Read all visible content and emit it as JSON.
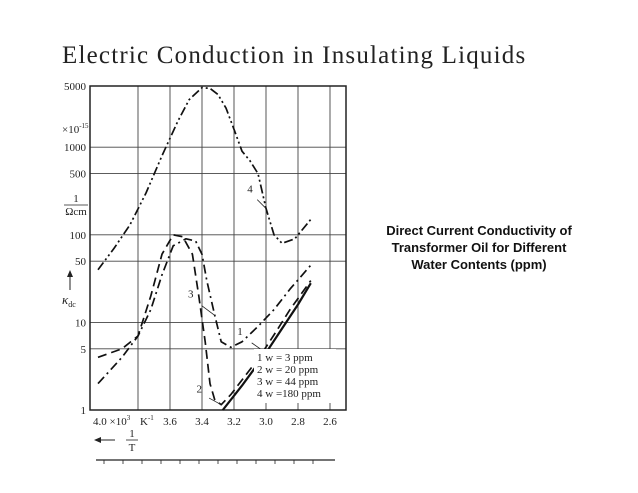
{
  "title": "Electric Conduction in Insulating Liquids",
  "caption": {
    "lines": [
      "Direct Current Conductivity of",
      "Transformer Oil for Different",
      "Water Contents (ppm)"
    ]
  },
  "chart_data": {
    "type": "line",
    "x_scale": "reciprocal",
    "y_scale": "log",
    "xlim": [
      4.1,
      2.5
    ],
    "ylim": [
      1,
      5000
    ],
    "grid": true,
    "ylabel": {
      "multiplier": "×10",
      "multiplier_exp": "-15",
      "unit_num": "1",
      "unit_den": "Ωcm",
      "symbol": "κ",
      "symbol_sub": "dc"
    },
    "xlabel": {
      "prefix": "4.0 ×10",
      "prefix_exp": "3",
      "unit": "K",
      "unit_exp": "-1",
      "frac_num": "1",
      "frac_den": "T"
    },
    "y_ticks": [
      {
        "value": 5000,
        "label": "5000"
      },
      {
        "value": 1000,
        "label": "1000"
      },
      {
        "value": 500,
        "label": "500"
      },
      {
        "value": 100,
        "label": "100"
      },
      {
        "value": 50,
        "label": "50"
      },
      {
        "value": 10,
        "label": "10"
      },
      {
        "value": 5,
        "label": "5"
      },
      {
        "value": 1,
        "label": "1"
      }
    ],
    "x_ticks": [
      {
        "value": 3.6,
        "label": "3.6"
      },
      {
        "value": 3.4,
        "label": "3.4"
      },
      {
        "value": 3.2,
        "label": "3.2"
      },
      {
        "value": 3.0,
        "label": "3.0"
      },
      {
        "value": 2.8,
        "label": "2.8"
      },
      {
        "value": 2.6,
        "label": "2.6"
      }
    ],
    "legend": {
      "placement": "bottom-right",
      "entries": [
        "1 w =   3 ppm",
        "2 w =  20 ppm",
        "3 w =  44 ppm",
        "4 w =180 ppm"
      ]
    },
    "series": [
      {
        "label": "1",
        "style": "solid",
        "x": [
          3.27,
          3.15,
          3.0,
          2.9,
          2.8,
          2.72
        ],
        "y": [
          1,
          1.9,
          4.5,
          8.5,
          16,
          28
        ]
      },
      {
        "label": "2",
        "style": "dashed",
        "x": [
          4.05,
          3.9,
          3.8,
          3.72,
          3.65,
          3.58,
          3.52,
          3.46,
          3.42,
          3.38,
          3.35,
          3.32,
          3.28,
          3.22,
          3.15,
          3.05,
          2.95,
          2.85,
          2.72
        ],
        "y": [
          4,
          5,
          7,
          20,
          60,
          100,
          95,
          60,
          20,
          6,
          2,
          1.3,
          1.15,
          1.5,
          2.2,
          3.8,
          7.2,
          14,
          30
        ]
      },
      {
        "label": "3",
        "style": "dashdot",
        "x": [
          4.05,
          3.9,
          3.8,
          3.72,
          3.65,
          3.58,
          3.5,
          3.44,
          3.4,
          3.37,
          3.32,
          3.28,
          3.22,
          3.15,
          3.05,
          2.95,
          2.85,
          2.72
        ],
        "y": [
          2,
          4,
          7,
          14,
          35,
          75,
          90,
          85,
          60,
          30,
          12,
          6,
          5.2,
          6,
          9,
          14,
          24,
          45
        ]
      },
      {
        "label": "4",
        "style": "dashdotdot",
        "x": [
          4.05,
          3.95,
          3.85,
          3.75,
          3.65,
          3.55,
          3.48,
          3.4,
          3.35,
          3.3,
          3.25,
          3.2,
          3.15,
          3.1,
          3.05,
          3.0,
          2.95,
          2.9,
          2.82,
          2.72
        ],
        "y": [
          40,
          70,
          130,
          300,
          800,
          2000,
          3500,
          4800,
          4700,
          4000,
          2800,
          1600,
          900,
          700,
          500,
          200,
          100,
          80,
          90,
          150
        ]
      }
    ],
    "annotations": [
      {
        "text": "1",
        "series": "1"
      },
      {
        "text": "2",
        "series": "2"
      },
      {
        "text": "3",
        "series": "3"
      },
      {
        "text": "4",
        "series": "4"
      }
    ]
  }
}
